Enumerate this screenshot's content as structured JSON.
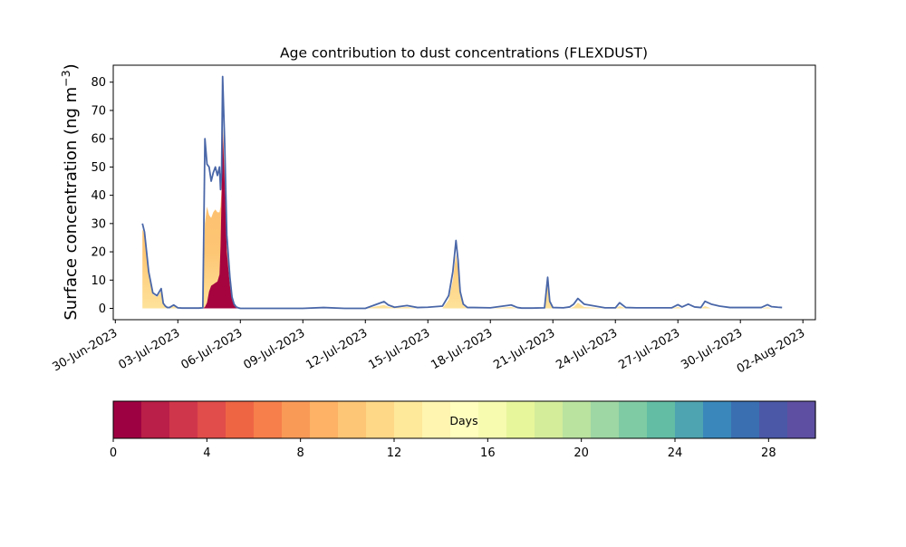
{
  "chart_data": {
    "type": "area",
    "title": "Age contribution to dust concentrations (FLEXDUST)",
    "xlabel": "",
    "ylabel": "Surface concentration (ng m",
    "ylabel_superscript": "−3",
    "ylabel_close": ")",
    "ylim": [
      -4,
      86
    ],
    "yticks": [
      0,
      10,
      20,
      30,
      40,
      50,
      60,
      70,
      80
    ],
    "xticks": [
      "30-Jun-2023",
      "03-Jul-2023",
      "06-Jul-2023",
      "09-Jul-2023",
      "12-Jul-2023",
      "15-Jul-2023",
      "18-Jul-2023",
      "21-Jul-2023",
      "24-Jul-2023",
      "27-Jul-2023",
      "30-Jul-2023",
      "02-Aug-2023"
    ],
    "xlim_days": [
      -0.1,
      33.6
    ],
    "x_days": [
      1.3,
      1.4,
      1.6,
      1.8,
      2.0,
      2.2,
      2.3,
      2.4,
      2.5,
      2.6,
      2.8,
      3.0,
      3.2,
      3.4,
      3.6,
      3.8,
      4.0,
      4.2,
      4.3,
      4.4,
      4.5,
      4.6,
      4.7,
      4.8,
      4.9,
      5.0,
      5.05,
      5.1,
      5.15,
      5.25,
      5.35,
      5.5,
      5.6,
      5.7,
      5.8,
      5.9,
      6.0,
      6.2,
      6.4,
      6.6,
      6.8,
      7.0,
      8.0,
      9.0,
      10.0,
      11.0,
      12.0,
      12.6,
      12.9,
      13.1,
      13.4,
      14.0,
      14.5,
      15.0,
      15.7,
      16.0,
      16.2,
      16.35,
      16.45,
      16.55,
      16.7,
      16.9,
      17.2,
      18.0,
      19.0,
      19.3,
      19.5,
      20.0,
      20.6,
      20.75,
      20.85,
      21.0,
      21.5,
      21.8,
      22.0,
      22.2,
      22.5,
      23.5,
      24.0,
      24.2,
      24.5,
      25.0,
      26.0,
      26.7,
      27.0,
      27.2,
      27.5,
      27.8,
      28.1,
      28.3,
      28.6,
      29.0,
      29.5,
      30.0,
      31.0,
      31.3,
      31.5,
      31.8,
      32.0
    ],
    "series": [
      {
        "values": [
          0,
          0,
          0,
          0,
          0,
          0,
          0,
          0,
          0,
          0,
          0,
          0,
          0,
          0,
          0,
          0,
          0,
          0,
          0.5,
          2,
          6,
          8,
          8.5,
          9,
          9.5,
          12,
          22,
          40,
          64,
          44,
          20,
          8,
          3,
          1,
          0.3,
          0.1,
          0,
          0,
          0,
          0,
          0,
          0,
          0,
          0,
          0,
          0,
          0,
          0,
          0,
          0,
          0,
          0,
          0,
          0,
          0,
          0,
          0,
          0,
          0,
          0,
          0,
          0,
          0,
          0,
          0,
          0,
          0,
          0,
          0,
          0,
          0,
          0,
          0,
          0,
          0,
          0,
          0,
          0,
          0,
          0,
          0,
          0,
          0,
          0,
          0,
          0,
          0,
          0,
          0,
          0,
          0,
          0,
          0,
          0,
          0,
          0,
          0,
          0,
          0
        ]
      },
      {
        "values": [
          28,
          26,
          12,
          5,
          4,
          6,
          1.5,
          0.5,
          0,
          0,
          0.8,
          0,
          0,
          0,
          0,
          0,
          0,
          0,
          30,
          36,
          33,
          32,
          34,
          35,
          34,
          34,
          36,
          42,
          66,
          48,
          22,
          9,
          3.5,
          1.2,
          0.4,
          0.1,
          0,
          0,
          0,
          0,
          0,
          0,
          0,
          0,
          0,
          0,
          0,
          0.8,
          1.2,
          0.6,
          0.2,
          0.5,
          0,
          0,
          0,
          3,
          10,
          19,
          14,
          5,
          1,
          0,
          0,
          0,
          0.5,
          0,
          0,
          0,
          0,
          8,
          2,
          0,
          0,
          0,
          0.5,
          2,
          0.5,
          0,
          0,
          0.8,
          0,
          0,
          0,
          0,
          0.5,
          0,
          0,
          0,
          0,
          0.8,
          0,
          0,
          0,
          0,
          0,
          0.4,
          0,
          0,
          0
        ]
      },
      {
        "values": [
          30,
          27,
          13,
          5.5,
          4.5,
          7,
          1.8,
          0.8,
          0.3,
          0.3,
          1.2,
          0.2,
          0.1,
          0.1,
          0.1,
          0.1,
          0.1,
          0.2,
          60,
          51,
          50,
          45,
          48,
          50,
          47,
          50,
          42,
          48,
          82,
          58,
          26,
          11,
          4,
          1.5,
          0.5,
          0.2,
          0,
          0,
          0,
          0,
          0,
          0,
          0,
          0,
          0.3,
          0,
          0,
          1.6,
          2.4,
          1.2,
          0.4,
          1.0,
          0.3,
          0.4,
          0.8,
          4.5,
          13,
          24,
          17,
          6,
          1.5,
          0.3,
          0.3,
          0.2,
          1.2,
          0.3,
          0.1,
          0.1,
          0.2,
          11,
          2.5,
          0.3,
          0.2,
          0.5,
          1.5,
          3.5,
          1.5,
          0.2,
          0.2,
          2,
          0.3,
          0.2,
          0.2,
          0.2,
          1.3,
          0.5,
          1.5,
          0.5,
          0.3,
          2.5,
          1.5,
          0.8,
          0.3,
          0.3,
          0.3,
          1.3,
          0.6,
          0.4,
          0.3
        ]
      }
    ],
    "colorbar": {
      "label": "Days",
      "ticks": [
        "0",
        "4",
        "8",
        "12",
        "16",
        "20",
        "24",
        "28"
      ],
      "tick_values": [
        0,
        4,
        8,
        12,
        16,
        20,
        24,
        28
      ],
      "range": [
        0,
        30
      ],
      "colors": [
        "#9e0142",
        "#b91f48",
        "#d0364b",
        "#e04d4a",
        "#ee6544",
        "#f67f4b",
        "#fa9a57",
        "#fdb265",
        "#fdc676",
        "#fed887",
        "#fee89a",
        "#fff5b0",
        "#fffebe",
        "#f6fbb0",
        "#e8f69b",
        "#d4ed9b",
        "#bae3a0",
        "#9ed7a4",
        "#7fcba4",
        "#63bda5",
        "#4ea4b0",
        "#3a88bb",
        "#3a6fb1",
        "#4b58a7",
        "#5e4fa2"
      ]
    },
    "colors": {
      "total_line": "#4a67a8",
      "young_fill": "#a5043f",
      "mid_fill": "#fdc674",
      "mid_fill_light": "#fee29a"
    },
    "grid": false,
    "legend": "none"
  }
}
